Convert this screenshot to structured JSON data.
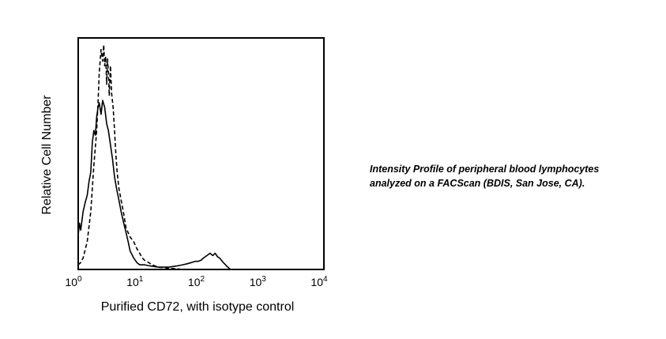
{
  "chart_data": {
    "type": "line",
    "title": "",
    "xlabel": "Purified CD72, with isotype control",
    "ylabel": "Relative Cell Number",
    "x_scale": "log",
    "xlim": [
      1,
      10000
    ],
    "ylim": [
      0,
      100
    ],
    "grid": false,
    "legend": "none",
    "x_ticks": [
      {
        "base": "10",
        "exp": "0"
      },
      {
        "base": "10",
        "exp": "1"
      },
      {
        "base": "10",
        "exp": "2"
      },
      {
        "base": "10",
        "exp": "3"
      },
      {
        "base": "10",
        "exp": "4"
      }
    ],
    "series": [
      {
        "style": "solid",
        "x": [
          1,
          1.05,
          1.1,
          1.2,
          1.3,
          1.4,
          1.5,
          1.6,
          1.7,
          1.8,
          1.9,
          2.0,
          2.1,
          2.2,
          2.35,
          2.5,
          2.7,
          2.9,
          3.1,
          3.3,
          3.6,
          3.9,
          4.2,
          4.6,
          5.0,
          5.5,
          6.0,
          6.5,
          7.0,
          8.0,
          9.0,
          10.0,
          12.0,
          15.0,
          20.0,
          25.0,
          30.0,
          40.0,
          50.0,
          60.0,
          70.0,
          80.0,
          90.0,
          100.0,
          110.0,
          125.0,
          140.0,
          155.0,
          170.0,
          185.0,
          200.0,
          230.0,
          260.0,
          300.0
        ],
        "y": [
          15,
          20,
          17,
          25,
          29,
          32,
          38,
          42,
          55,
          60,
          58,
          66,
          70,
          72,
          67,
          73,
          70,
          63,
          60,
          55,
          48,
          40,
          35,
          30,
          25,
          20,
          16,
          12,
          8,
          5,
          3,
          2,
          2,
          1.5,
          1,
          1,
          1,
          1.5,
          2,
          2.5,
          3,
          3.5,
          3.5,
          4,
          5,
          6,
          7,
          6,
          7,
          5.5,
          5,
          3,
          1.5,
          0
        ]
      },
      {
        "style": "dashed",
        "x": [
          1,
          1.1,
          1.2,
          1.4,
          1.6,
          1.8,
          2.0,
          2.1,
          2.2,
          2.35,
          2.5,
          2.6,
          2.7,
          2.8,
          2.9,
          3.0,
          3.1,
          3.2,
          3.35,
          3.5,
          3.7,
          3.9,
          4.1,
          4.3,
          4.6,
          5.0,
          5.5,
          6.0,
          7.0,
          8.0,
          9.0,
          10.0,
          11.0,
          12.0,
          14.0,
          16.0,
          18.0,
          20.0,
          25.0,
          30.0,
          40.0,
          50.0
        ],
        "y": [
          2,
          3,
          5,
          12,
          25,
          45,
          60,
          72,
          85,
          95,
          90,
          97,
          88,
          92,
          80,
          91,
          85,
          75,
          88,
          76,
          70,
          60,
          50,
          42,
          35,
          30,
          24,
          18,
          14,
          12,
          9,
          7,
          5,
          4,
          3,
          2,
          1.5,
          1,
          0.8,
          0.5,
          0.3,
          0
        ]
      }
    ]
  },
  "caption": {
    "line1": "Intensity Profile of peripheral blood lymphocytes",
    "line2": "analyzed on a FACScan (BDIS, San Jose, CA)."
  }
}
